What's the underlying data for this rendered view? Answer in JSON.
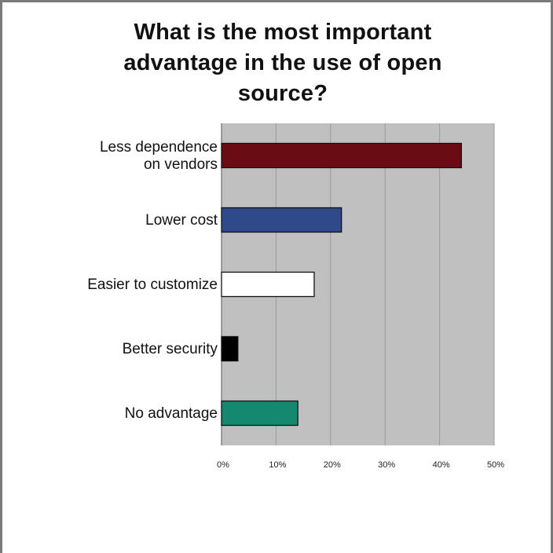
{
  "chart_data": {
    "type": "bar",
    "orientation": "horizontal",
    "title": "What is the most important\nadvantage in the use of open\nsource?",
    "categories": [
      "Less dependence\non vendors",
      "Lower cost",
      "Easier to customize",
      "Better security",
      "No advantage"
    ],
    "values": [
      44,
      22,
      17,
      3,
      14
    ],
    "bar_colors": [
      "#6b0b13",
      "#2e4a8a",
      "#ffffff",
      "#000000",
      "#158870"
    ],
    "xlim": [
      0,
      50
    ],
    "xticks": [
      0,
      10,
      20,
      30,
      40,
      50
    ],
    "xtick_labels": [
      "0%",
      "10%",
      "20%",
      "30%",
      "40%",
      "50%"
    ],
    "xlabel": "",
    "ylabel": "",
    "grid": true,
    "plot_background": "#c0c0c0"
  }
}
